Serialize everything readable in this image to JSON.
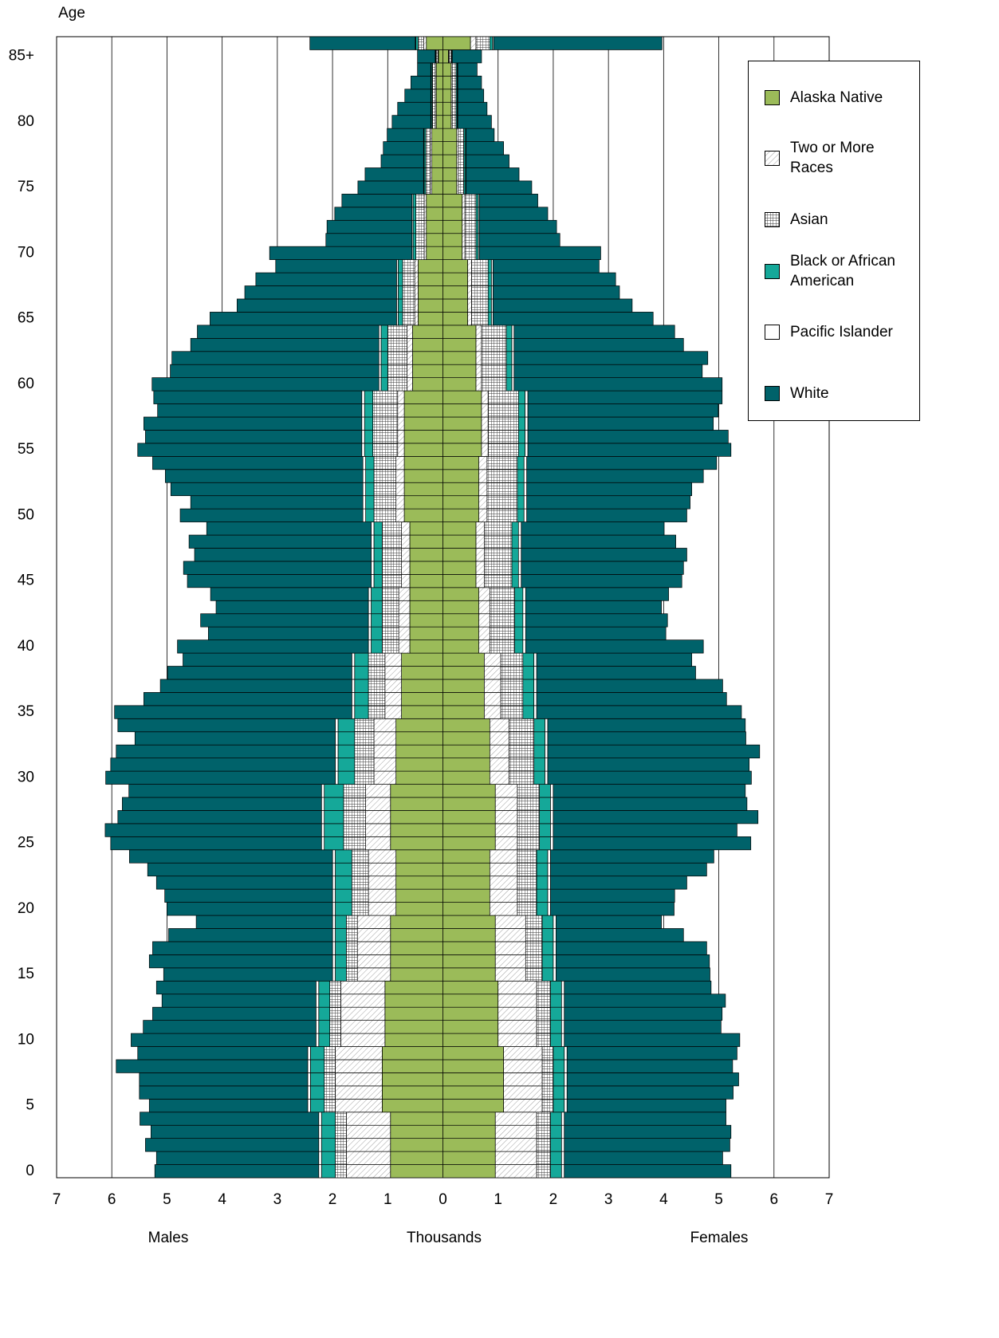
{
  "chart_data": {
    "type": "population_pyramid",
    "ylabel": "Age",
    "xlabel": "Thousands",
    "left_label": "Males",
    "right_label": "Females",
    "legend": "upper right",
    "grid": true,
    "xlim": [
      -7,
      7
    ],
    "xticks": [
      {
        "value": -7,
        "label": "7"
      },
      {
        "value": -6,
        "label": "6"
      },
      {
        "value": -5,
        "label": "5"
      },
      {
        "value": -4,
        "label": "4"
      },
      {
        "value": -3,
        "label": "3"
      },
      {
        "value": -2,
        "label": "2"
      },
      {
        "value": -1,
        "label": "1"
      },
      0,
      1,
      2,
      3,
      4,
      5,
      6,
      7
    ],
    "categories": [
      "0",
      null,
      null,
      null,
      null,
      "5",
      null,
      null,
      null,
      null,
      "10",
      null,
      null,
      null,
      null,
      "15",
      null,
      null,
      null,
      null,
      "20",
      null,
      null,
      null,
      null,
      "25",
      null,
      null,
      null,
      null,
      "30",
      null,
      null,
      null,
      null,
      "35",
      null,
      null,
      null,
      null,
      "40",
      null,
      null,
      null,
      null,
      "45",
      null,
      null,
      null,
      null,
      "50",
      null,
      null,
      null,
      null,
      "55",
      null,
      null,
      null,
      null,
      "60",
      null,
      null,
      null,
      null,
      "65",
      null,
      null,
      null,
      null,
      "70",
      null,
      null,
      null,
      null,
      "75",
      null,
      null,
      null,
      null,
      "80",
      null,
      null,
      null,
      null,
      "85+",
      null
    ],
    "series": [
      {
        "name": "Alaska Native",
        "color": "#9bbb59",
        "pattern": null,
        "males": [
          0.95,
          0.95,
          0.95,
          0.95,
          0.95,
          1.1,
          1.1,
          1.1,
          1.1,
          1.1,
          1.05,
          1.05,
          1.05,
          1.05,
          1.05,
          0.95,
          0.95,
          0.95,
          0.95,
          0.95,
          0.85,
          0.85,
          0.85,
          0.85,
          0.85,
          0.95,
          0.95,
          0.95,
          0.95,
          0.95,
          0.85,
          0.85,
          0.85,
          0.85,
          0.85,
          0.75,
          0.75,
          0.75,
          0.75,
          0.75,
          0.6,
          0.6,
          0.6,
          0.6,
          0.6,
          0.6,
          0.6,
          0.6,
          0.6,
          0.6,
          0.7,
          0.7,
          0.7,
          0.7,
          0.7,
          0.7,
          0.7,
          0.7,
          0.7,
          0.7,
          0.55,
          0.55,
          0.55,
          0.55,
          0.55,
          0.45,
          0.45,
          0.45,
          0.45,
          0.45,
          0.3,
          0.3,
          0.3,
          0.3,
          0.3,
          0.2,
          0.2,
          0.2,
          0.2,
          0.2,
          0.12,
          0.12,
          0.12,
          0.12,
          0.12,
          0.08,
          0.3
        ],
        "females": [
          0.95,
          0.95,
          0.95,
          0.95,
          0.95,
          1.1,
          1.1,
          1.1,
          1.1,
          1.1,
          1.0,
          1.0,
          1.0,
          1.0,
          1.0,
          0.95,
          0.95,
          0.95,
          0.95,
          0.95,
          0.85,
          0.85,
          0.85,
          0.85,
          0.85,
          0.95,
          0.95,
          0.95,
          0.95,
          0.95,
          0.85,
          0.85,
          0.85,
          0.85,
          0.85,
          0.75,
          0.75,
          0.75,
          0.75,
          0.75,
          0.65,
          0.65,
          0.65,
          0.65,
          0.65,
          0.6,
          0.6,
          0.6,
          0.6,
          0.6,
          0.65,
          0.65,
          0.65,
          0.65,
          0.65,
          0.7,
          0.7,
          0.7,
          0.7,
          0.7,
          0.6,
          0.6,
          0.6,
          0.6,
          0.6,
          0.45,
          0.45,
          0.45,
          0.45,
          0.45,
          0.35,
          0.35,
          0.35,
          0.35,
          0.35,
          0.25,
          0.25,
          0.25,
          0.25,
          0.25,
          0.15,
          0.15,
          0.15,
          0.15,
          0.15,
          0.1,
          0.5
        ]
      },
      {
        "name": "Two or More Races",
        "color": "#ffffff",
        "pattern": "hatch",
        "males": [
          0.8,
          0.8,
          0.8,
          0.8,
          0.8,
          0.85,
          0.85,
          0.85,
          0.85,
          0.85,
          0.8,
          0.8,
          0.8,
          0.8,
          0.8,
          0.6,
          0.6,
          0.6,
          0.6,
          0.6,
          0.5,
          0.5,
          0.5,
          0.5,
          0.5,
          0.45,
          0.45,
          0.45,
          0.45,
          0.45,
          0.4,
          0.4,
          0.4,
          0.4,
          0.4,
          0.3,
          0.3,
          0.3,
          0.3,
          0.3,
          0.2,
          0.2,
          0.2,
          0.2,
          0.2,
          0.15,
          0.15,
          0.15,
          0.15,
          0.15,
          0.15,
          0.15,
          0.15,
          0.15,
          0.15,
          0.12,
          0.12,
          0.12,
          0.12,
          0.12,
          0.1,
          0.1,
          0.1,
          0.1,
          0.1,
          0.06,
          0.06,
          0.06,
          0.06,
          0.06,
          0.04,
          0.04,
          0.04,
          0.04,
          0.04,
          0.03,
          0.03,
          0.03,
          0.03,
          0.03,
          0.02,
          0.02,
          0.02,
          0.02,
          0.02,
          0.01,
          0.05
        ],
        "females": [
          0.75,
          0.75,
          0.75,
          0.75,
          0.75,
          0.7,
          0.7,
          0.7,
          0.7,
          0.7,
          0.7,
          0.7,
          0.7,
          0.7,
          0.7,
          0.55,
          0.55,
          0.55,
          0.55,
          0.55,
          0.5,
          0.5,
          0.5,
          0.5,
          0.5,
          0.4,
          0.4,
          0.4,
          0.4,
          0.4,
          0.35,
          0.35,
          0.35,
          0.35,
          0.35,
          0.3,
          0.3,
          0.3,
          0.3,
          0.3,
          0.2,
          0.2,
          0.2,
          0.2,
          0.2,
          0.15,
          0.15,
          0.15,
          0.15,
          0.15,
          0.15,
          0.15,
          0.15,
          0.15,
          0.15,
          0.12,
          0.12,
          0.12,
          0.12,
          0.12,
          0.1,
          0.1,
          0.1,
          0.1,
          0.1,
          0.07,
          0.07,
          0.07,
          0.07,
          0.07,
          0.05,
          0.05,
          0.05,
          0.05,
          0.05,
          0.03,
          0.03,
          0.03,
          0.03,
          0.03,
          0.02,
          0.02,
          0.02,
          0.02,
          0.02,
          0.01,
          0.1
        ]
      },
      {
        "name": "Asian",
        "color": "#ffffff",
        "pattern": "grid",
        "males": [
          0.2,
          0.2,
          0.2,
          0.2,
          0.2,
          0.2,
          0.2,
          0.2,
          0.2,
          0.2,
          0.2,
          0.2,
          0.2,
          0.2,
          0.2,
          0.2,
          0.2,
          0.2,
          0.2,
          0.2,
          0.3,
          0.3,
          0.3,
          0.3,
          0.3,
          0.4,
          0.4,
          0.4,
          0.4,
          0.4,
          0.35,
          0.35,
          0.35,
          0.35,
          0.35,
          0.3,
          0.3,
          0.3,
          0.3,
          0.3,
          0.3,
          0.3,
          0.3,
          0.3,
          0.3,
          0.35,
          0.35,
          0.35,
          0.35,
          0.35,
          0.4,
          0.4,
          0.4,
          0.4,
          0.4,
          0.45,
          0.45,
          0.45,
          0.45,
          0.45,
          0.35,
          0.35,
          0.35,
          0.35,
          0.35,
          0.22,
          0.22,
          0.22,
          0.22,
          0.22,
          0.15,
          0.15,
          0.15,
          0.15,
          0.15,
          0.08,
          0.08,
          0.08,
          0.08,
          0.08,
          0.05,
          0.05,
          0.05,
          0.05,
          0.05,
          0.03,
          0.1
        ],
        "females": [
          0.25,
          0.25,
          0.25,
          0.25,
          0.25,
          0.2,
          0.2,
          0.2,
          0.2,
          0.2,
          0.25,
          0.25,
          0.25,
          0.25,
          0.25,
          0.3,
          0.3,
          0.3,
          0.3,
          0.3,
          0.35,
          0.35,
          0.35,
          0.35,
          0.35,
          0.4,
          0.4,
          0.4,
          0.4,
          0.4,
          0.45,
          0.45,
          0.45,
          0.45,
          0.45,
          0.4,
          0.4,
          0.4,
          0.4,
          0.4,
          0.45,
          0.45,
          0.45,
          0.45,
          0.45,
          0.5,
          0.5,
          0.5,
          0.5,
          0.5,
          0.55,
          0.55,
          0.55,
          0.55,
          0.55,
          0.55,
          0.55,
          0.55,
          0.55,
          0.55,
          0.45,
          0.45,
          0.45,
          0.45,
          0.45,
          0.3,
          0.3,
          0.3,
          0.3,
          0.3,
          0.2,
          0.2,
          0.2,
          0.2,
          0.2,
          0.1,
          0.1,
          0.1,
          0.1,
          0.1,
          0.07,
          0.07,
          0.07,
          0.07,
          0.07,
          0.04,
          0.25
        ]
      },
      {
        "name": "Black or African American",
        "color": "#15a899",
        "pattern": null,
        "males": [
          0.25,
          0.25,
          0.25,
          0.25,
          0.25,
          0.25,
          0.25,
          0.25,
          0.25,
          0.25,
          0.2,
          0.2,
          0.2,
          0.2,
          0.2,
          0.2,
          0.2,
          0.2,
          0.2,
          0.2,
          0.3,
          0.3,
          0.3,
          0.3,
          0.3,
          0.35,
          0.35,
          0.35,
          0.35,
          0.35,
          0.3,
          0.3,
          0.3,
          0.3,
          0.3,
          0.25,
          0.25,
          0.25,
          0.25,
          0.25,
          0.2,
          0.2,
          0.2,
          0.2,
          0.2,
          0.15,
          0.15,
          0.15,
          0.15,
          0.15,
          0.15,
          0.15,
          0.15,
          0.15,
          0.15,
          0.15,
          0.15,
          0.15,
          0.15,
          0.15,
          0.12,
          0.12,
          0.12,
          0.12,
          0.12,
          0.08,
          0.08,
          0.08,
          0.08,
          0.08,
          0.05,
          0.05,
          0.05,
          0.05,
          0.05,
          0.03,
          0.03,
          0.03,
          0.03,
          0.03,
          0.02,
          0.02,
          0.02,
          0.02,
          0.02,
          0.01,
          0.04
        ],
        "females": [
          0.2,
          0.2,
          0.2,
          0.2,
          0.2,
          0.2,
          0.2,
          0.2,
          0.2,
          0.2,
          0.2,
          0.2,
          0.2,
          0.2,
          0.2,
          0.2,
          0.2,
          0.2,
          0.2,
          0.2,
          0.2,
          0.2,
          0.2,
          0.2,
          0.2,
          0.2,
          0.2,
          0.2,
          0.2,
          0.2,
          0.2,
          0.2,
          0.2,
          0.2,
          0.2,
          0.2,
          0.2,
          0.2,
          0.2,
          0.2,
          0.15,
          0.15,
          0.15,
          0.15,
          0.15,
          0.12,
          0.12,
          0.12,
          0.12,
          0.12,
          0.12,
          0.12,
          0.12,
          0.12,
          0.12,
          0.12,
          0.12,
          0.12,
          0.12,
          0.12,
          0.1,
          0.1,
          0.1,
          0.1,
          0.1,
          0.06,
          0.06,
          0.06,
          0.06,
          0.06,
          0.04,
          0.04,
          0.04,
          0.04,
          0.04,
          0.03,
          0.03,
          0.03,
          0.03,
          0.03,
          0.02,
          0.02,
          0.02,
          0.02,
          0.02,
          0.01,
          0.05
        ]
      },
      {
        "name": "Pacific Islander",
        "color": "#ffffff",
        "pattern": null,
        "males": [
          0.05,
          0.05,
          0.05,
          0.05,
          0.05,
          0.05,
          0.05,
          0.05,
          0.05,
          0.05,
          0.05,
          0.05,
          0.05,
          0.05,
          0.05,
          0.05,
          0.05,
          0.05,
          0.05,
          0.05,
          0.05,
          0.05,
          0.05,
          0.05,
          0.05,
          0.05,
          0.05,
          0.05,
          0.05,
          0.05,
          0.05,
          0.05,
          0.05,
          0.05,
          0.05,
          0.05,
          0.05,
          0.05,
          0.05,
          0.05,
          0.05,
          0.05,
          0.05,
          0.05,
          0.05,
          0.05,
          0.05,
          0.05,
          0.05,
          0.05,
          0.05,
          0.05,
          0.05,
          0.05,
          0.05,
          0.05,
          0.05,
          0.05,
          0.05,
          0.05,
          0.04,
          0.04,
          0.04,
          0.04,
          0.04,
          0.03,
          0.03,
          0.03,
          0.03,
          0.03,
          0.02,
          0.02,
          0.02,
          0.02,
          0.02,
          0.01,
          0.01,
          0.01,
          0.01,
          0.01,
          0.01,
          0.01,
          0.01,
          0.01,
          0.01,
          0.01,
          0.01
        ],
        "females": [
          0.05,
          0.05,
          0.05,
          0.05,
          0.05,
          0.05,
          0.05,
          0.05,
          0.05,
          0.05,
          0.05,
          0.05,
          0.05,
          0.05,
          0.05,
          0.05,
          0.05,
          0.05,
          0.05,
          0.05,
          0.05,
          0.05,
          0.05,
          0.05,
          0.05,
          0.05,
          0.05,
          0.05,
          0.05,
          0.05,
          0.05,
          0.05,
          0.05,
          0.05,
          0.05,
          0.05,
          0.05,
          0.05,
          0.05,
          0.05,
          0.05,
          0.05,
          0.05,
          0.05,
          0.05,
          0.05,
          0.05,
          0.05,
          0.05,
          0.05,
          0.05,
          0.05,
          0.05,
          0.05,
          0.05,
          0.05,
          0.05,
          0.05,
          0.05,
          0.05,
          0.04,
          0.04,
          0.04,
          0.04,
          0.04,
          0.03,
          0.03,
          0.03,
          0.03,
          0.03,
          0.02,
          0.02,
          0.02,
          0.02,
          0.02,
          0.01,
          0.01,
          0.01,
          0.01,
          0.01,
          0.01,
          0.01,
          0.01,
          0.01,
          0.01,
          0.01,
          0.02
        ]
      },
      {
        "name": "White",
        "color": "#00626a",
        "pattern": null,
        "males": [
          2.97,
          2.94,
          3.14,
          3.04,
          3.24,
          2.87,
          3.05,
          3.05,
          3.47,
          3.08,
          3.35,
          3.13,
          2.96,
          2.79,
          2.89,
          3.06,
          3.32,
          3.26,
          2.97,
          2.47,
          3.0,
          3.04,
          3.19,
          3.35,
          3.68,
          3.82,
          3.92,
          3.69,
          3.61,
          3.49,
          4.16,
          4.07,
          3.97,
          3.63,
          3.94,
          4.3,
          3.77,
          3.47,
          3.34,
          3.06,
          3.46,
          2.9,
          3.04,
          2.76,
          2.86,
          3.33,
          3.4,
          3.2,
          3.3,
          2.98,
          3.31,
          3.12,
          3.48,
          3.58,
          3.81,
          4.06,
          3.92,
          3.95,
          3.7,
          3.77,
          4.11,
          3.78,
          3.75,
          3.41,
          3.29,
          3.38,
          2.89,
          2.75,
          2.55,
          2.19,
          2.58,
          1.56,
          1.54,
          1.4,
          1.27,
          1.19,
          1.06,
          0.77,
          0.73,
          0.66,
          0.7,
          0.6,
          0.47,
          0.36,
          0.24,
          0.32,
          1.91
        ],
        "females": [
          3.02,
          2.87,
          3.0,
          3.02,
          2.93,
          2.88,
          3.01,
          3.11,
          3.0,
          3.08,
          3.18,
          2.84,
          2.86,
          2.92,
          2.66,
          2.79,
          2.78,
          2.73,
          2.31,
          1.91,
          2.24,
          2.25,
          2.47,
          2.83,
          2.96,
          3.58,
          3.33,
          3.71,
          3.51,
          3.48,
          3.69,
          3.65,
          3.84,
          3.59,
          3.58,
          3.71,
          3.44,
          3.37,
          2.88,
          2.81,
          3.22,
          2.54,
          2.57,
          2.46,
          2.59,
          2.91,
          2.94,
          3.0,
          2.8,
          2.59,
          2.9,
          2.96,
          2.99,
          3.2,
          3.44,
          3.68,
          3.63,
          3.36,
          3.45,
          3.52,
          3.77,
          3.41,
          3.51,
          3.07,
          2.91,
          2.9,
          2.52,
          2.29,
          2.22,
          1.92,
          2.2,
          1.46,
          1.4,
          1.24,
          1.06,
          1.19,
          0.96,
          0.78,
          0.68,
          0.51,
          0.61,
          0.53,
          0.47,
          0.43,
          0.35,
          0.53,
          3.05
        ]
      }
    ]
  }
}
